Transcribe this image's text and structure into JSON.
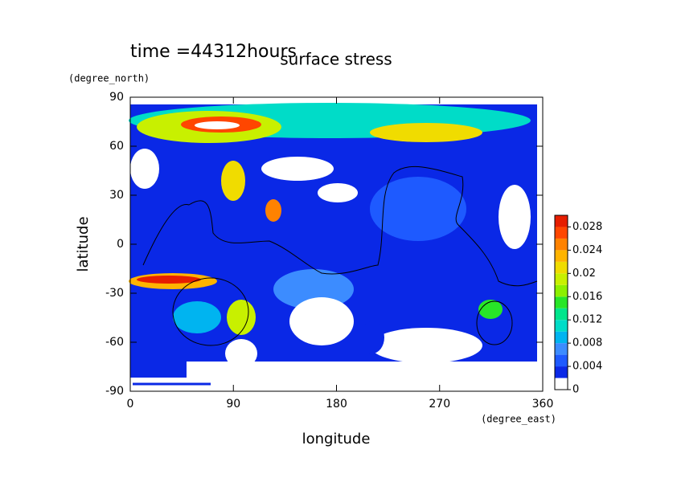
{
  "chart_data": {
    "type": "contour",
    "title": "surface stress",
    "annotation": "time =44312hours",
    "x_label": "longitude",
    "y_label": "latitude",
    "x_units": "(degree_east)",
    "y_units": "(degree_north)",
    "xlim": [
      0,
      360
    ],
    "xticks": [
      0,
      90,
      180,
      270,
      360
    ],
    "ylim": [
      -90,
      90
    ],
    "yticks": [
      -90,
      -60,
      -30,
      0,
      30,
      60,
      90
    ],
    "clim": [
      0,
      0.03
    ],
    "cticks": [
      0,
      0.004,
      0.008,
      0.012,
      0.016,
      0.02,
      0.024,
      0.028
    ],
    "colors": [
      "#ffffff",
      "#0a28e6",
      "#1e5aff",
      "#3c8cff",
      "#00b4f0",
      "#00dcc8",
      "#00e68c",
      "#28e628",
      "#8cf000",
      "#c8f000",
      "#f0dc00",
      "#ffb400",
      "#ff8200",
      "#ff4600",
      "#e61e00"
    ]
  }
}
